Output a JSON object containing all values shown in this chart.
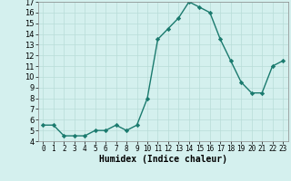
{
  "x": [
    0,
    1,
    2,
    3,
    4,
    5,
    6,
    7,
    8,
    9,
    10,
    11,
    12,
    13,
    14,
    15,
    16,
    17,
    18,
    19,
    20,
    21,
    22,
    23
  ],
  "y": [
    5.5,
    5.5,
    4.5,
    4.5,
    4.5,
    5.0,
    5.0,
    5.5,
    5.0,
    5.5,
    8.0,
    13.5,
    14.5,
    15.5,
    17.0,
    16.5,
    16.0,
    13.5,
    11.5,
    9.5,
    8.5,
    8.5,
    11.0,
    11.5
  ],
  "xlim": [
    -0.5,
    23.5
  ],
  "ylim": [
    4,
    17
  ],
  "xticks": [
    0,
    1,
    2,
    3,
    4,
    5,
    6,
    7,
    8,
    9,
    10,
    11,
    12,
    13,
    14,
    15,
    16,
    17,
    18,
    19,
    20,
    21,
    22,
    23
  ],
  "yticks": [
    4,
    5,
    6,
    7,
    8,
    9,
    10,
    11,
    12,
    13,
    14,
    15,
    16,
    17
  ],
  "xlabel": "Humidex (Indice chaleur)",
  "line_color": "#1a7a6e",
  "marker": "D",
  "marker_size": 2.2,
  "bg_color": "#d4f0ee",
  "grid_color": "#b8dcd8"
}
